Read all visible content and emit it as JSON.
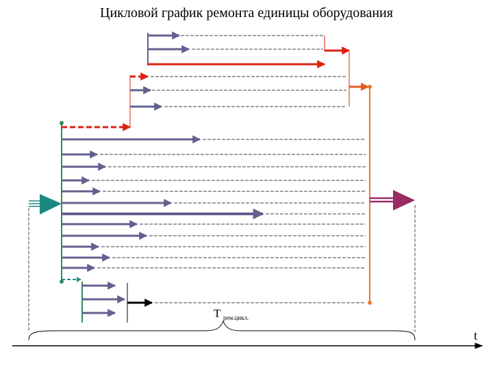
{
  "title": "Цикловой график ремонта единицы оборудования",
  "cycle_label_main": "Т",
  "cycle_label_sub": "рем.цикл.",
  "time_axis_label": "t",
  "colors": {
    "operation_arrow": "#62608f",
    "repair_red": "#e02010",
    "orange_line": "#e8762a",
    "start_teal": "#1a8a80",
    "end_magenta": "#9a2a62",
    "green_stem": "#2e8a5a"
  }
}
